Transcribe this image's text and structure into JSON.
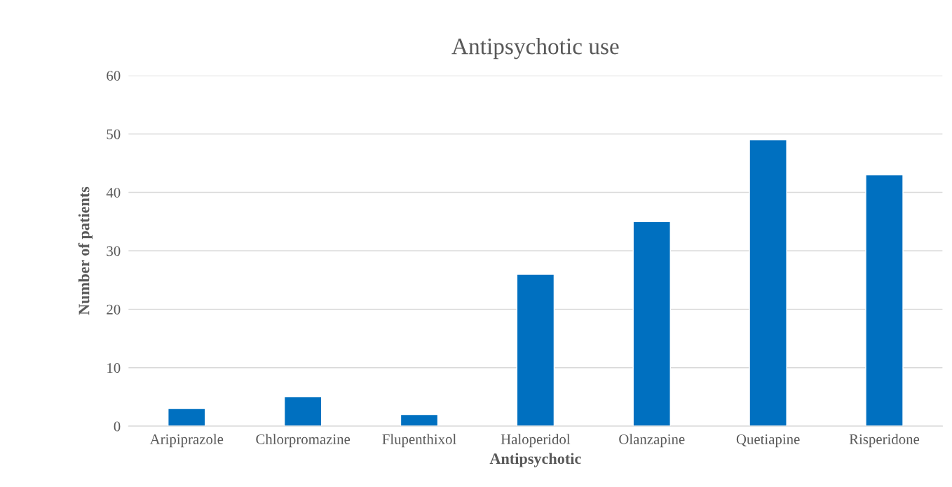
{
  "chart_data": {
    "type": "bar",
    "title": "Antipsychotic use",
    "xlabel": "Antipsychotic",
    "ylabel": "Number of patients",
    "categories": [
      "Aripiprazole",
      "Chlorpromazine",
      "Flupenthixol",
      "Haloperidol",
      "Olanzapine",
      "Quetiapine",
      "Risperidone"
    ],
    "values": [
      3,
      5,
      2,
      26,
      35,
      49,
      43
    ],
    "color": "#0070c0",
    "ylim": [
      0,
      60
    ],
    "yticks": [
      0,
      10,
      20,
      30,
      40,
      50,
      60
    ],
    "grid": "y",
    "legend": false
  }
}
